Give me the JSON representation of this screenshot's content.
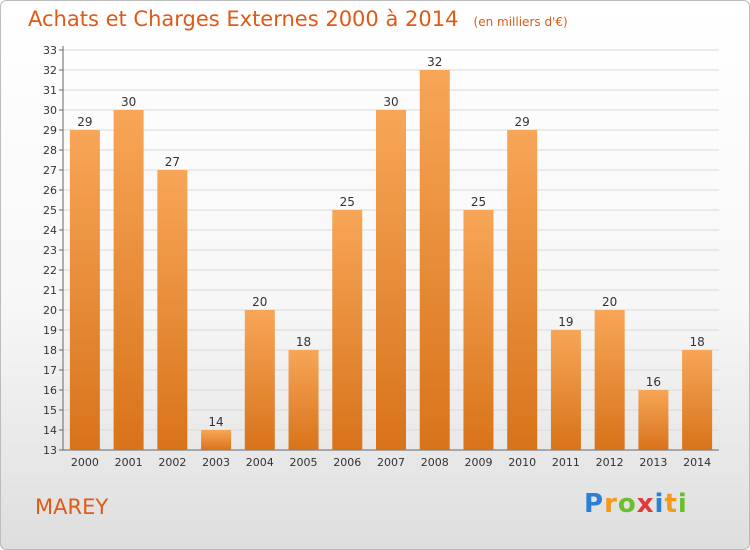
{
  "title": "Achats et Charges Externes 2000 à 2014",
  "subtitle": "(en milliers d'€)",
  "commune": "MAREY",
  "logo": {
    "letters": [
      "P",
      "r",
      "o",
      "x",
      "i",
      "t",
      "i"
    ],
    "colors": [
      "#2b7fd6",
      "#f39a1a",
      "#6abf2a",
      "#e03a3a",
      "#2b7fd6",
      "#f39a1a",
      "#6abf2a"
    ]
  },
  "colors": {
    "bar_light": "#f7a657",
    "bar_dark": "#d8731a",
    "accent": "#e05a16"
  },
  "chart_data": {
    "type": "bar",
    "categories": [
      "2000",
      "2001",
      "2002",
      "2003",
      "2004",
      "2005",
      "2006",
      "2007",
      "2008",
      "2009",
      "2010",
      "2011",
      "2012",
      "2013",
      "2014"
    ],
    "values": [
      29,
      30,
      27,
      14,
      20,
      18,
      25,
      30,
      32,
      25,
      29,
      19,
      20,
      16,
      18
    ],
    "title": "Achats et Charges Externes 2000 à 2014",
    "ylim": [
      13,
      33
    ],
    "yticks": [
      13,
      14,
      15,
      16,
      17,
      18,
      19,
      20,
      21,
      22,
      23,
      24,
      25,
      26,
      27,
      28,
      29,
      30,
      31,
      32,
      33
    ],
    "grid": true,
    "data_labels": true
  }
}
